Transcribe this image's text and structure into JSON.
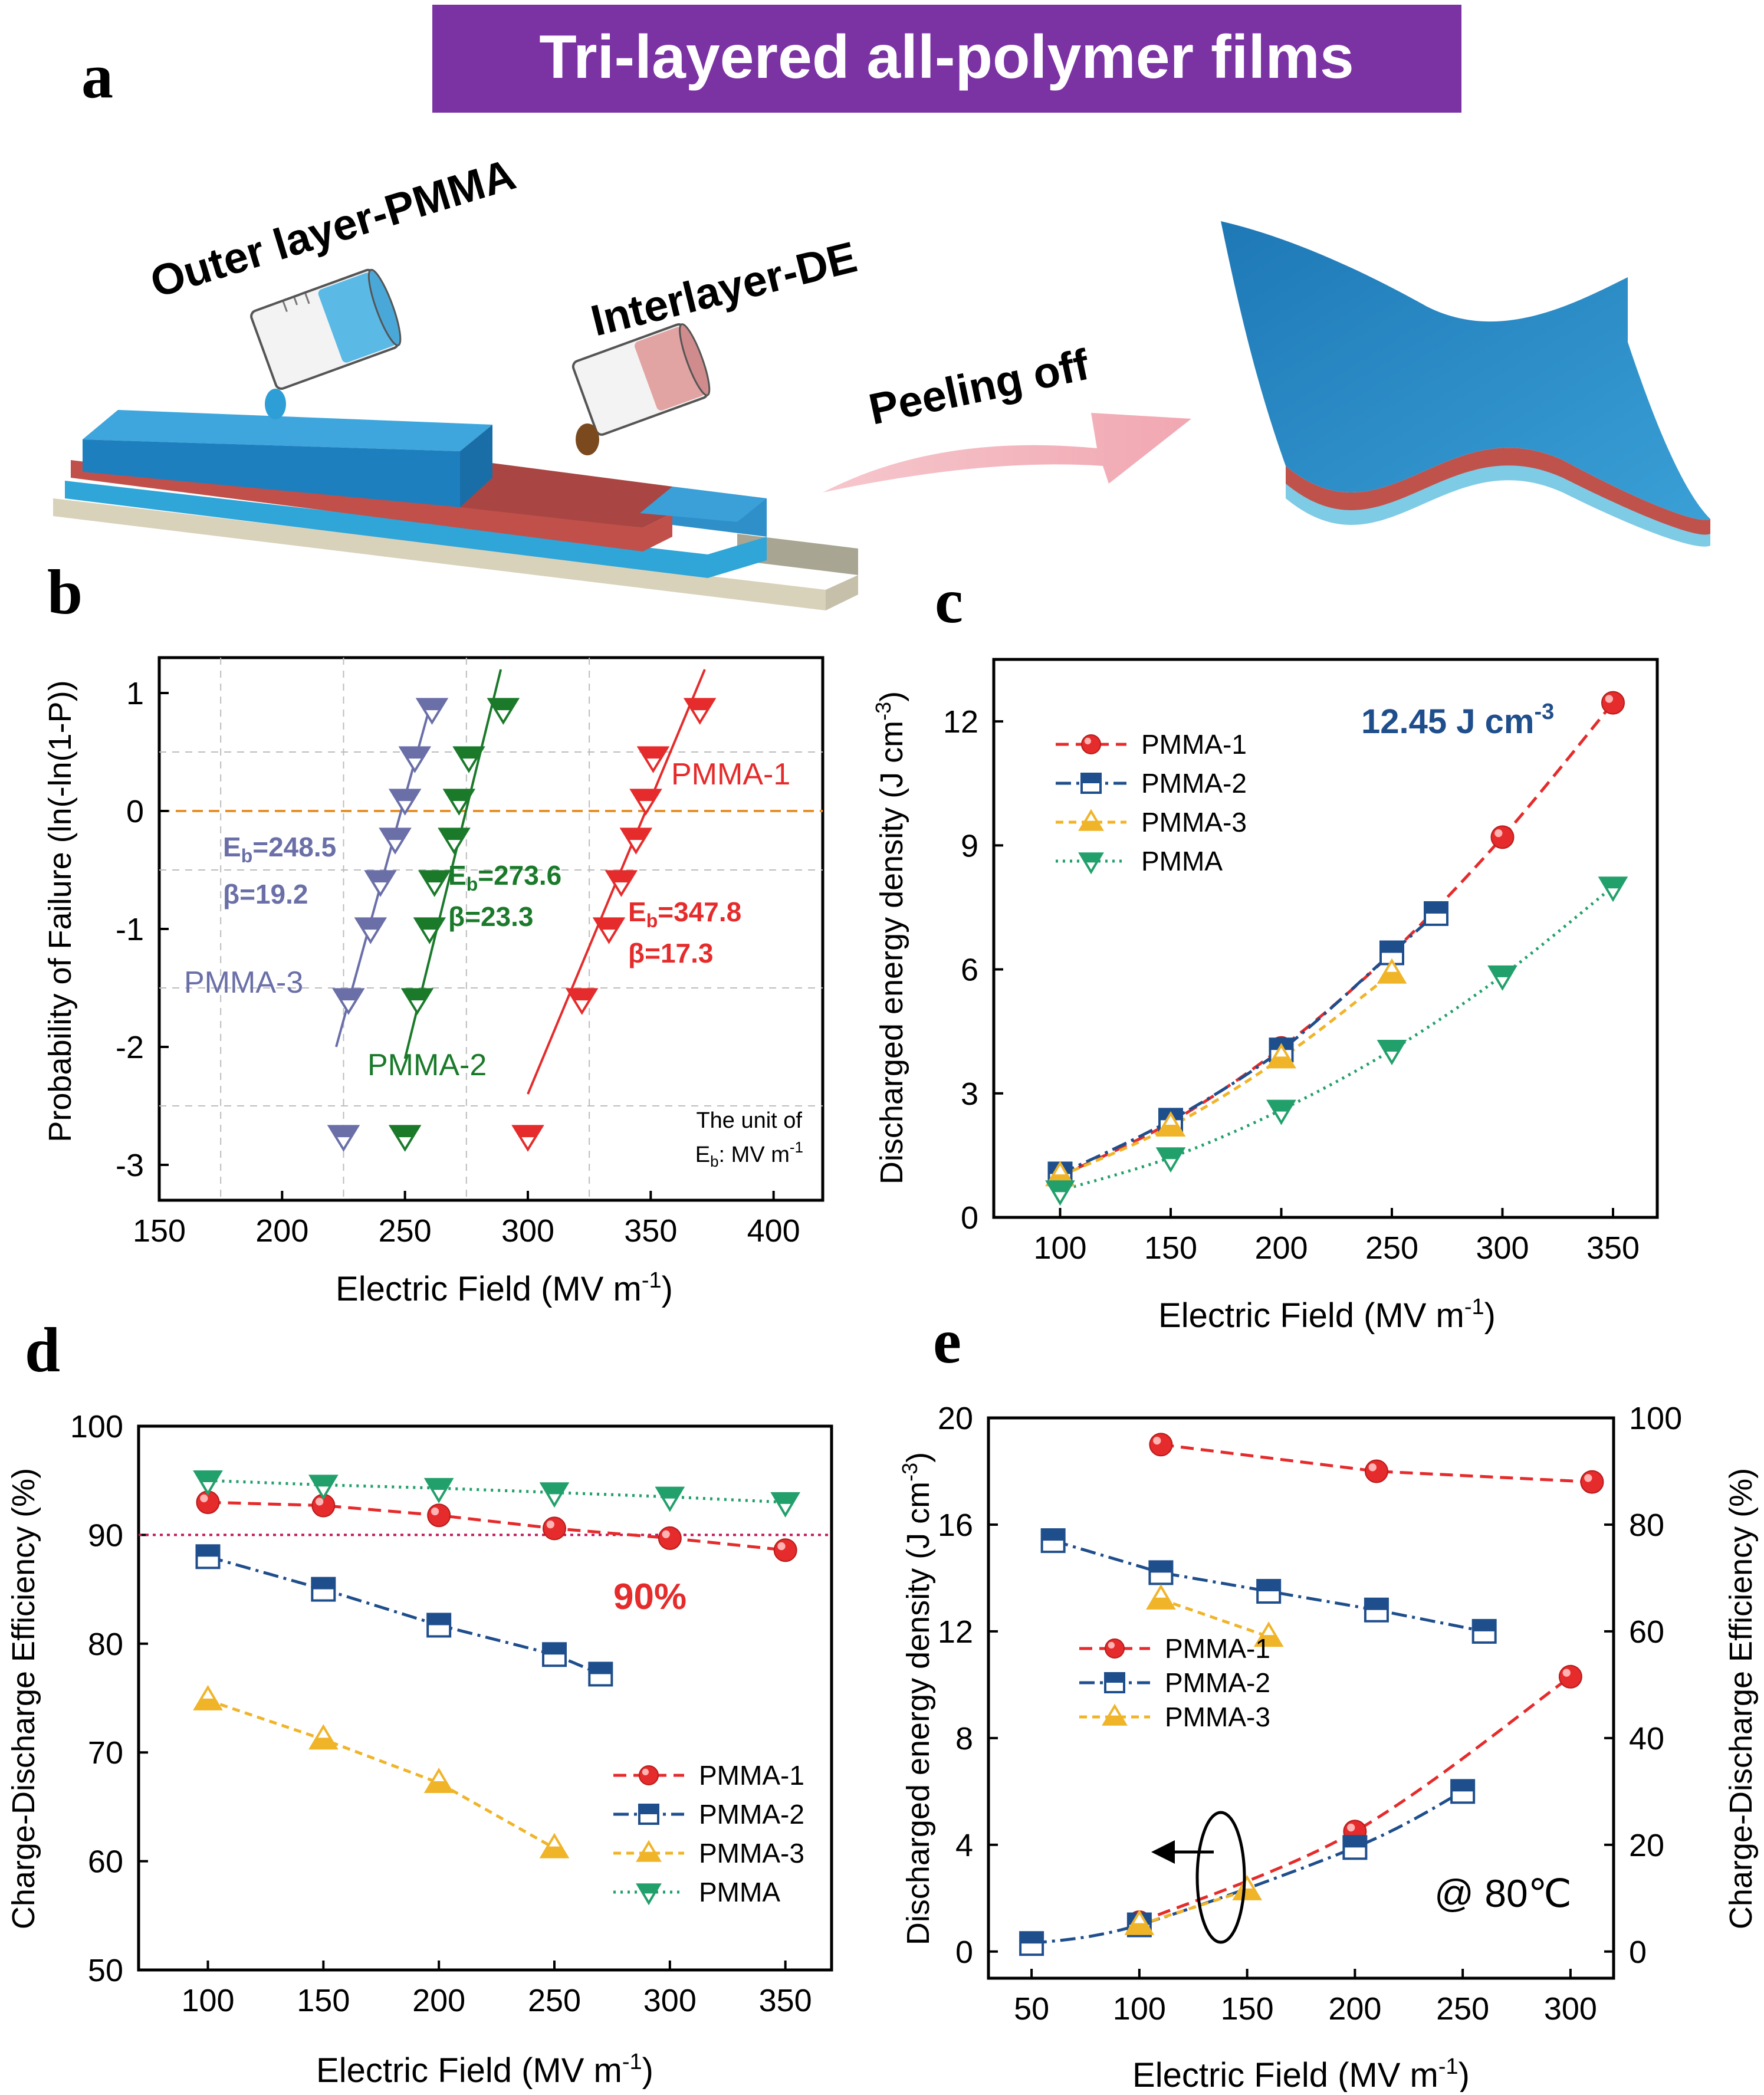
{
  "panels": {
    "a": "a",
    "b": "b",
    "c": "c",
    "d": "d",
    "e": "e"
  },
  "schematic": {
    "banner": "Tri-layered all-polymer films",
    "outer_layer_label": "Outer layer-PMMA",
    "interlayer_label": "Interlayer-DE",
    "peeling_label": "Peeling off",
    "colors": {
      "banner": "#7b32a3",
      "pmma": "#2e8fc9",
      "de": "#b5433e",
      "arrow": "#f3b6bd"
    }
  },
  "chart_data": [
    {
      "panel": "b",
      "type": "scatter",
      "xlabel": "Electric Field (MV m",
      "xlabel_sup": "-1",
      "xlabel_end": ")",
      "ylabel": "Probability of Failure (ln(-ln(1-P))",
      "xlim": [
        150,
        420
      ],
      "ylim": [
        -3.3,
        1.3
      ],
      "xticks": [
        150,
        200,
        250,
        300,
        350,
        400
      ],
      "yticks": [
        1,
        0,
        -1,
        -2,
        -3
      ],
      "reference_line_y": 0,
      "series": [
        {
          "name": "PMMA-1",
          "color": "#e52b2b",
          "x": [
            300,
            322,
            333,
            338,
            344,
            348,
            351,
            370
          ],
          "y": [
            -2.76,
            -1.6,
            -1.0,
            -0.6,
            -0.24,
            0.09,
            0.45,
            0.86
          ],
          "fit": [
            [
              300,
              -2.4
            ],
            [
              372,
              1.2
            ]
          ],
          "label": "PMMA-1",
          "eb": "E",
          "eb_sub": "b",
          "eb_val": "=347.8",
          "beta": "β=17.3"
        },
        {
          "name": "PMMA-2",
          "color": "#1a7a2a",
          "x": [
            250,
            255,
            260,
            262,
            270,
            272,
            276,
            290
          ],
          "y": [
            -2.76,
            -1.6,
            -1.0,
            -0.6,
            -0.24,
            0.09,
            0.45,
            0.86
          ],
          "fit": [
            [
              250,
              -2.1
            ],
            [
              289,
              1.2
            ]
          ],
          "label": "PMMA-2",
          "eb": "E",
          "eb_sub": "b",
          "eb_val": "=273.6",
          "beta": "β=23.3"
        },
        {
          "name": "PMMA-3",
          "color": "#6a6fa8",
          "x": [
            225,
            227,
            236,
            240,
            246,
            250,
            254,
            261
          ],
          "y": [
            -2.76,
            -1.6,
            -1.0,
            -0.6,
            -0.24,
            0.09,
            0.45,
            0.86
          ],
          "fit": [
            [
              222,
              -2.0
            ],
            [
              261,
              0.95
            ]
          ],
          "label": "PMMA-3",
          "eb": "E",
          "eb_sub": "b",
          "eb_val": "=248.5",
          "beta": "β=19.2"
        }
      ],
      "note_line1": "The unit of",
      "note_e": "E",
      "note_sub": "b",
      "note_rest": ": MV m",
      "note_sup": "-1"
    },
    {
      "panel": "c",
      "type": "line",
      "xlabel": "Electric Field (MV m",
      "xlabel_sup": "-1",
      "xlabel_end": ")",
      "ylabel": "Discharged energy density (J cm",
      "ylabel_sup": "-3",
      "ylabel_end": ")",
      "xlim": [
        70,
        370
      ],
      "ylim": [
        0,
        13.5
      ],
      "xticks": [
        100,
        150,
        200,
        250,
        300,
        350
      ],
      "yticks": [
        0,
        3,
        6,
        9,
        12
      ],
      "series": [
        {
          "name": "PMMA-1",
          "color": "#e52b2b",
          "marker": "circle",
          "dash": "22,12",
          "x": [
            100,
            150,
            200,
            250,
            300,
            350
          ],
          "y": [
            1.0,
            2.3,
            4.1,
            6.4,
            9.2,
            12.45
          ]
        },
        {
          "name": "PMMA-2",
          "color": "#1f4e8c",
          "marker": "square",
          "dash": "26,9,5,9",
          "x": [
            100,
            150,
            200,
            250,
            270
          ],
          "y": [
            1.05,
            2.35,
            4.05,
            6.4,
            7.35
          ]
        },
        {
          "name": "PMMA-3",
          "color": "#f0b429",
          "marker": "triangle-up",
          "dash": "13,9",
          "x": [
            100,
            150,
            200,
            250
          ],
          "y": [
            1.0,
            2.2,
            3.85,
            5.9
          ]
        },
        {
          "name": "PMMA",
          "color": "#22a06b",
          "marker": "triangle-down",
          "dash": "4,8",
          "x": [
            100,
            150,
            200,
            250,
            300,
            350
          ],
          "y": [
            0.65,
            1.45,
            2.6,
            4.05,
            5.85,
            8.0
          ]
        }
      ],
      "annotation": "12.45 J cm",
      "annotation_sup": "-3"
    },
    {
      "panel": "d",
      "type": "line",
      "xlabel": "Electric Field (MV m",
      "xlabel_sup": "-1",
      "xlabel_end": ")",
      "ylabel": "Charge-Discharge Efficiency (%)",
      "xlim": [
        70,
        370
      ],
      "ylim": [
        50,
        100
      ],
      "xticks": [
        100,
        150,
        200,
        250,
        300,
        350
      ],
      "yticks": [
        50,
        60,
        70,
        80,
        90,
        100
      ],
      "reference_line_y": 90,
      "reference_label": "90%",
      "series": [
        {
          "name": "PMMA-1",
          "color": "#e52b2b",
          "marker": "circle",
          "dash": "22,12",
          "x": [
            100,
            150,
            200,
            250,
            300,
            350
          ],
          "y": [
            93.0,
            92.7,
            91.8,
            90.6,
            89.7,
            88.6
          ]
        },
        {
          "name": "PMMA-2",
          "color": "#1f4e8c",
          "marker": "square",
          "dash": "26,9,5,9",
          "x": [
            100,
            150,
            200,
            250,
            270
          ],
          "y": [
            88.0,
            85.0,
            81.7,
            79.0,
            77.2
          ]
        },
        {
          "name": "PMMA-3",
          "color": "#f0b429",
          "marker": "triangle-up",
          "dash": "13,9",
          "x": [
            100,
            150,
            200,
            250
          ],
          "y": [
            74.8,
            71.2,
            67.2,
            61.2
          ]
        },
        {
          "name": "PMMA",
          "color": "#22a06b",
          "marker": "triangle-down",
          "dash": "4,8",
          "x": [
            100,
            150,
            200,
            250,
            300,
            350
          ],
          "y": [
            95.0,
            94.6,
            94.3,
            93.9,
            93.5,
            93.0
          ]
        }
      ]
    },
    {
      "panel": "e",
      "type": "line",
      "xlabel": "Electric Field (MV m",
      "xlabel_sup": "-1",
      "xlabel_end": ")",
      "ylabel": "Discharged energy density (J cm",
      "ylabel_sup": "-3",
      "ylabel_end": ")",
      "ylabel_right": "Charge-Discharge Efficiency (%)",
      "xlim": [
        30,
        320
      ],
      "ylim": [
        -1,
        20
      ],
      "ylim_right": [
        0,
        100
      ],
      "xticks": [
        50,
        100,
        150,
        200,
        250,
        300
      ],
      "yticks": [
        0,
        4,
        8,
        12,
        16,
        20
      ],
      "yticks_right": [
        0,
        20,
        40,
        60,
        80,
        100
      ],
      "annotation": "@ 80℃",
      "series": [
        {
          "name": "PMMA-1",
          "color": "#e52b2b",
          "marker": "circle",
          "dash": "22,12",
          "axis": "left",
          "x": [
            100,
            200,
            300
          ],
          "y": [
            1.1,
            4.5,
            10.3
          ]
        },
        {
          "name": "PMMA-2",
          "color": "#1f4e8c",
          "marker": "square",
          "dash": "26,9,5,9",
          "axis": "left",
          "x": [
            50,
            100,
            200,
            250
          ],
          "y": [
            0.3,
            1.0,
            3.9,
            6.0
          ]
        },
        {
          "name": "PMMA-3",
          "color": "#f0b429",
          "marker": "triangle-up",
          "dash": "13,9",
          "axis": "left",
          "x": [
            100,
            150
          ],
          "y": [
            1.0,
            2.3
          ]
        },
        {
          "name": "PMMA-1 efficiency",
          "color": "#e52b2b",
          "marker": "circle",
          "dash": "22,12",
          "axis": "right",
          "x": [
            110,
            210,
            310
          ],
          "y": [
            95,
            90,
            88
          ]
        },
        {
          "name": "PMMA-2 efficiency",
          "color": "#1f4e8c",
          "marker": "square",
          "dash": "26,9,5,9",
          "axis": "right",
          "x": [
            60,
            110,
            160,
            210,
            260
          ],
          "y": [
            77,
            71,
            67.5,
            64,
            60
          ]
        },
        {
          "name": "PMMA-3 efficiency",
          "color": "#f0b429",
          "marker": "triangle-up",
          "dash": "13,9",
          "axis": "right",
          "x": [
            110,
            160
          ],
          "y": [
            66,
            59
          ]
        }
      ],
      "legend": [
        "PMMA-1",
        "PMMA-2",
        "PMMA-3"
      ]
    }
  ]
}
